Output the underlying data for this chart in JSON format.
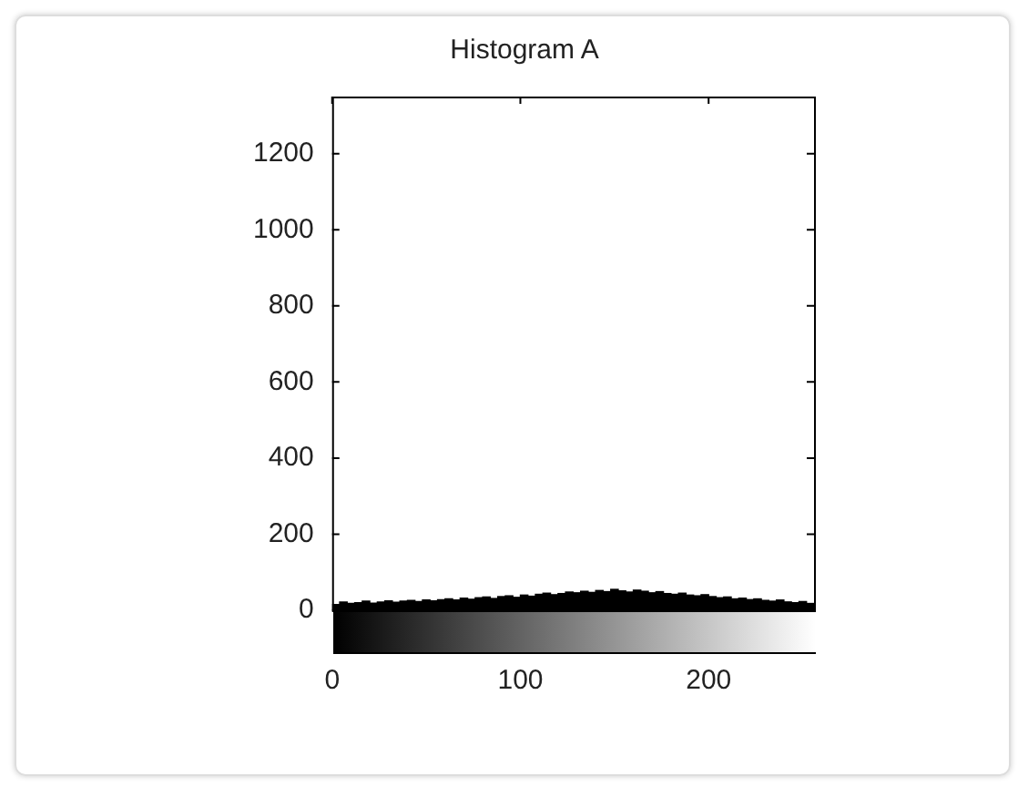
{
  "chart_data": {
    "type": "histogram",
    "title": "Histogram A",
    "bins": [
      0,
      4,
      8,
      12,
      16,
      20,
      24,
      28,
      32,
      36,
      40,
      44,
      48,
      52,
      56,
      60,
      64,
      68,
      72,
      76,
      80,
      84,
      88,
      92,
      96,
      100,
      104,
      108,
      112,
      116,
      120,
      124,
      128,
      132,
      136,
      140,
      144,
      148,
      152,
      156,
      160,
      164,
      168,
      172,
      176,
      180,
      184,
      188,
      192,
      196,
      200,
      204,
      208,
      212,
      216,
      220,
      224,
      228,
      232,
      236,
      240,
      244,
      248,
      252,
      256
    ],
    "values": [
      15,
      22,
      18,
      20,
      24,
      19,
      22,
      25,
      21,
      24,
      26,
      23,
      27,
      25,
      28,
      30,
      27,
      32,
      29,
      33,
      35,
      31,
      36,
      38,
      34,
      40,
      37,
      42,
      45,
      41,
      44,
      48,
      46,
      50,
      47,
      52,
      49,
      55,
      51,
      48,
      53,
      50,
      46,
      49,
      44,
      42,
      45,
      40,
      38,
      41,
      36,
      33,
      35,
      30,
      32,
      28,
      30,
      26,
      24,
      27,
      22,
      20,
      23,
      18
    ],
    "color": "#000000",
    "xlim": [
      0,
      256
    ],
    "xticks": [
      0,
      100,
      200
    ],
    "ylim": [
      0,
      1350
    ],
    "yticks": [
      0,
      200,
      400,
      600,
      800,
      1000,
      1200
    ],
    "grid": false
  }
}
